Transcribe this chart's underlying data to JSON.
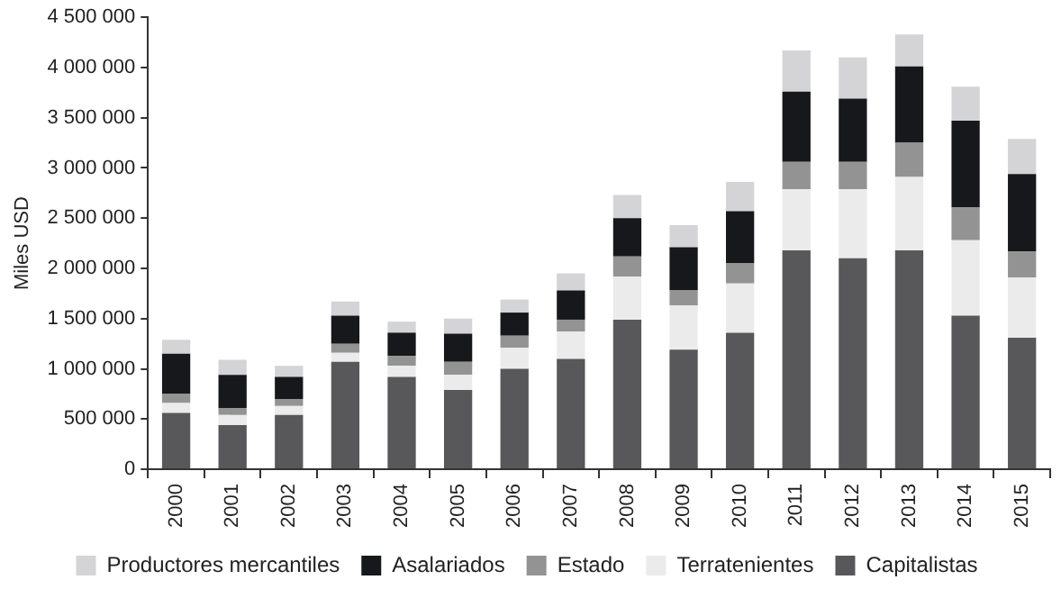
{
  "chart_data": {
    "type": "bar",
    "stacked": true,
    "ylabel": "Miles USD",
    "legend": "bottom",
    "grid": false,
    "categories": [
      "2000",
      "2001",
      "2002",
      "2003",
      "2004",
      "2005",
      "2006",
      "2007",
      "2008",
      "2009",
      "2010",
      "2011",
      "2012",
      "2013",
      "2014",
      "2015"
    ],
    "ylim": [
      0,
      4500000
    ],
    "yticks": [
      0,
      {
        "value": 500000,
        "label": "500 000"
      },
      {
        "value": 1000000,
        "label": "1 000 000"
      },
      {
        "value": 1500000,
        "label": "1 500 000"
      },
      {
        "value": 2000000,
        "label": "2 000 000"
      },
      {
        "value": 2500000,
        "label": "2 500 000"
      },
      {
        "value": 3000000,
        "label": "3 000 000"
      },
      {
        "value": 3500000,
        "label": "3 500 000"
      },
      {
        "value": 4000000,
        "label": "4 000 000"
      },
      {
        "value": 4500000,
        "label": "4 500 000"
      }
    ],
    "series": [
      {
        "name": "Capitalistas",
        "color": "#58585a",
        "values": [
          560000,
          440000,
          540000,
          1070000,
          920000,
          790000,
          1000000,
          1100000,
          1490000,
          1190000,
          1360000,
          2180000,
          2100000,
          2180000,
          1530000,
          1310000
        ]
      },
      {
        "name": "Terratenientes",
        "color": "#ebebeb",
        "values": [
          100000,
          100000,
          90000,
          90000,
          110000,
          150000,
          210000,
          270000,
          430000,
          440000,
          490000,
          610000,
          690000,
          730000,
          750000,
          600000
        ]
      },
      {
        "name": "Estado",
        "color": "#939393",
        "values": [
          90000,
          70000,
          70000,
          90000,
          100000,
          130000,
          120000,
          120000,
          200000,
          150000,
          200000,
          270000,
          270000,
          340000,
          330000,
          260000
        ]
      },
      {
        "name": "Asalariados",
        "color": "#16181b",
        "values": [
          400000,
          330000,
          220000,
          280000,
          230000,
          280000,
          230000,
          290000,
          380000,
          430000,
          520000,
          700000,
          630000,
          760000,
          860000,
          770000
        ]
      },
      {
        "name": "Productores mercantiles",
        "color": "#d4d4d6",
        "values": [
          140000,
          150000,
          110000,
          140000,
          110000,
          150000,
          130000,
          170000,
          230000,
          220000,
          290000,
          410000,
          410000,
          320000,
          340000,
          350000
        ]
      }
    ]
  }
}
